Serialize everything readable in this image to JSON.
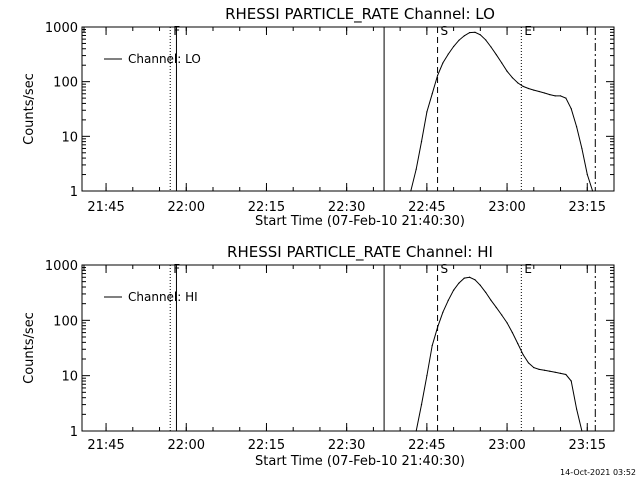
{
  "chart_data": [
    {
      "type": "line",
      "title": "RHESSI PARTICLE_RATE Channel: LO",
      "xlabel": "Start Time (07-Feb-10 21:40:30)",
      "ylabel": "Counts/sec",
      "yscale": "log",
      "ylim": [
        1,
        1000
      ],
      "xlim": [
        "21:40:30",
        "23:20:00"
      ],
      "x_ticks": [
        "21:45",
        "22:00",
        "22:15",
        "22:30",
        "22:45",
        "23:00",
        "23:15"
      ],
      "y_ticks": [
        "1",
        "10",
        "100",
        "1000"
      ],
      "legend": {
        "position": "top-left",
        "entries": [
          "Channel: LO"
        ]
      },
      "series": [
        {
          "name": "Channel: LO",
          "x": [
            "22:42",
            "22:43",
            "22:44",
            "22:45",
            "22:46",
            "22:47",
            "22:48",
            "22:49",
            "22:50",
            "22:51",
            "22:52",
            "22:53",
            "22:54",
            "22:55",
            "22:56",
            "22:57",
            "22:58",
            "22:59",
            "23:00",
            "23:01",
            "23:02",
            "23:03",
            "23:04",
            "23:05",
            "23:06",
            "23:07",
            "23:08",
            "23:09",
            "23:10",
            "23:11",
            "23:12",
            "23:13",
            "23:14",
            "23:15",
            "23:16"
          ],
          "values": [
            1,
            2.5,
            8,
            28,
            60,
            130,
            220,
            320,
            440,
            570,
            690,
            790,
            800,
            720,
            580,
            430,
            310,
            220,
            155,
            118,
            95,
            82,
            75,
            70,
            66,
            62,
            58,
            55,
            55,
            50,
            32,
            15,
            6,
            2,
            1
          ]
        }
      ],
      "markers": [
        {
          "label": "F",
          "time": "21:57:00",
          "style": "dotted"
        },
        {
          "label": "",
          "time": "21:58:10",
          "style": "solid"
        },
        {
          "label": "",
          "time": "22:37:00",
          "style": "solid"
        },
        {
          "label": "S",
          "time": "22:47:00",
          "style": "dashed"
        },
        {
          "label": "E",
          "time": "23:02:40",
          "style": "dotted"
        },
        {
          "label": "",
          "time": "23:16:30",
          "style": "dashdot"
        }
      ]
    },
    {
      "type": "line",
      "title": "RHESSI PARTICLE_RATE Channel: HI",
      "xlabel": "Start Time (07-Feb-10 21:40:30)",
      "ylabel": "Counts/sec",
      "yscale": "log",
      "ylim": [
        1,
        1000
      ],
      "xlim": [
        "21:40:30",
        "23:20:00"
      ],
      "x_ticks": [
        "21:45",
        "22:00",
        "22:15",
        "22:30",
        "22:45",
        "23:00",
        "23:15"
      ],
      "y_ticks": [
        "1",
        "10",
        "100",
        "1000"
      ],
      "legend": {
        "position": "top-left",
        "entries": [
          "Channel: HI"
        ]
      },
      "series": [
        {
          "name": "Channel: HI",
          "x": [
            "22:43",
            "22:44",
            "22:45",
            "22:46",
            "22:47",
            "22:48",
            "22:49",
            "22:50",
            "22:51",
            "22:52",
            "22:53",
            "22:54",
            "22:55",
            "22:56",
            "22:57",
            "22:58",
            "22:59",
            "23:00",
            "23:01",
            "23:02",
            "23:03",
            "23:04",
            "23:05",
            "23:06",
            "23:07",
            "23:08",
            "23:09",
            "23:10",
            "23:11",
            "23:12",
            "23:13",
            "23:14"
          ],
          "values": [
            1,
            3,
            10,
            35,
            75,
            140,
            230,
            350,
            470,
            580,
            600,
            540,
            430,
            320,
            230,
            170,
            125,
            90,
            60,
            38,
            24,
            17,
            14,
            13,
            12.5,
            12,
            11.5,
            11,
            10.5,
            8,
            2.5,
            1
          ]
        }
      ],
      "markers": [
        {
          "label": "F",
          "time": "21:57:00",
          "style": "dotted"
        },
        {
          "label": "",
          "time": "21:58:10",
          "style": "solid"
        },
        {
          "label": "",
          "time": "22:37:00",
          "style": "solid"
        },
        {
          "label": "S",
          "time": "22:47:00",
          "style": "dashed"
        },
        {
          "label": "E",
          "time": "23:02:40",
          "style": "dotted"
        },
        {
          "label": "",
          "time": "23:16:30",
          "style": "dashdot"
        }
      ]
    }
  ],
  "footer": {
    "timestamp": "14-Oct-2021 03:52"
  }
}
